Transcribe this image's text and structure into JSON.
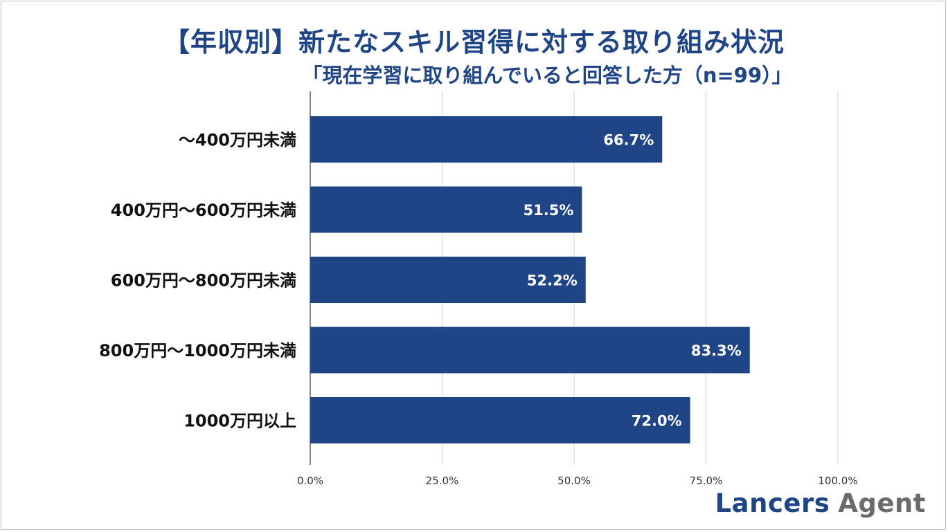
{
  "header": {
    "title": "【年収別】新たなスキル習得に対する取り組み状況",
    "subtitle": "「現在学習に取り組んでいると回答した方（n=99）」"
  },
  "logo": {
    "brand": "Lancers",
    "agent": "Agent"
  },
  "colors": {
    "title": "#1f4587",
    "bar": "#1f4587",
    "grid": "#d0d0d0",
    "axis": "#333333"
  },
  "chart_data": {
    "type": "bar",
    "orientation": "horizontal",
    "categories": [
      "～400万円未満",
      "400万円～600万円未満",
      "600万円～800万円未満",
      "800万円～1000万円未満",
      "1000万円以上"
    ],
    "values": [
      66.7,
      51.5,
      52.2,
      83.3,
      72.0
    ],
    "value_labels": [
      "66.7%",
      "51.5%",
      "52.2%",
      "83.3%",
      "72.0%"
    ],
    "xlim": [
      0,
      100
    ],
    "ticks": [
      0,
      25,
      50,
      75,
      100
    ],
    "tick_labels": [
      "0.0%",
      "25.0%",
      "50.0%",
      "75.0%",
      "100.0%"
    ],
    "grid": true,
    "legend": "none"
  }
}
